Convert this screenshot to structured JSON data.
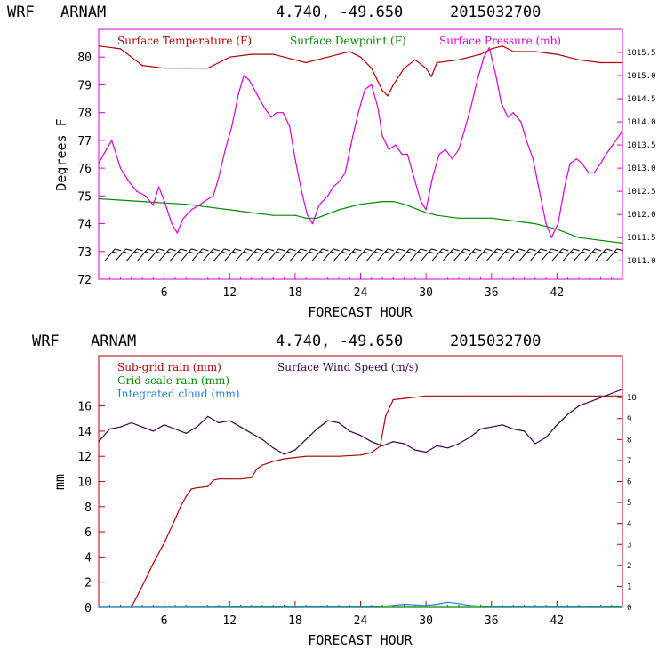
{
  "chart_data": [
    {
      "type": "line",
      "header": {
        "model": "WRF",
        "station": "ARNAM",
        "coords": "4.740, -49.650",
        "date": "2015032700"
      },
      "xlabel": "FORECAST HOUR",
      "ylabel": "Degrees F",
      "xlim": [
        0,
        48
      ],
      "ylim": [
        72,
        81
      ],
      "xticks": [
        6,
        12,
        18,
        24,
        30,
        36,
        42
      ],
      "yticks": [
        72,
        73,
        74,
        75,
        76,
        77,
        78,
        79,
        80
      ],
      "y2label": "Surface Pressure (mb)",
      "y2lim": [
        1010.6,
        1016.0
      ],
      "y2ticks": [
        "1011.0",
        "1011.5",
        "1012.0",
        "1012.5",
        "1013.0",
        "1013.5",
        "1014.0",
        "1014.5",
        "1015.0",
        "1015.5"
      ],
      "series": [
        {
          "name": "Surface Temperature (F)",
          "color": "#b00000",
          "axis": "left",
          "x": [
            0,
            2,
            3,
            4,
            6,
            8,
            10,
            11,
            12,
            14,
            16,
            18,
            19,
            20,
            22,
            23,
            24,
            25,
            26,
            26.5,
            27,
            28,
            29,
            30,
            30.5,
            31,
            33,
            35,
            36,
            37,
            38,
            40,
            42,
            44,
            46,
            48
          ],
          "values": [
            80.4,
            80.3,
            80.0,
            79.7,
            79.6,
            79.6,
            79.6,
            79.8,
            80.0,
            80.1,
            80.1,
            79.9,
            79.8,
            79.9,
            80.1,
            80.2,
            80.0,
            79.6,
            78.8,
            78.6,
            79.0,
            79.6,
            79.9,
            79.6,
            79.3,
            79.8,
            79.9,
            80.1,
            80.3,
            80.4,
            80.2,
            80.2,
            80.1,
            79.9,
            79.8,
            79.8
          ]
        },
        {
          "name": "Surface Dewpoint (F)",
          "color": "#008800",
          "axis": "left",
          "x": [
            0,
            4,
            8,
            10,
            12,
            14,
            16,
            18,
            19,
            20,
            22,
            24,
            26,
            27,
            28,
            30,
            31,
            33,
            36,
            38,
            40,
            42,
            44,
            46,
            48
          ],
          "values": [
            74.9,
            74.8,
            74.7,
            74.6,
            74.5,
            74.4,
            74.3,
            74.3,
            74.2,
            74.2,
            74.5,
            74.7,
            74.8,
            74.8,
            74.7,
            74.4,
            74.3,
            74.2,
            74.2,
            74.1,
            74.0,
            73.8,
            73.5,
            73.4,
            73.3
          ]
        },
        {
          "name": "Surface Pressure (mb)",
          "color": "#d400d4",
          "axis": "right",
          "x": [
            0,
            0.7,
            1.2,
            2,
            2.8,
            3.5,
            4.3,
            5,
            5.5,
            6,
            6.7,
            7.2,
            7.7,
            8.5,
            9.2,
            9.8,
            10.5,
            11,
            11.6,
            12.2,
            12.8,
            13.3,
            13.8,
            14.5,
            15.2,
            15.8,
            16.3,
            16.9,
            17.5,
            18,
            18.6,
            19.1,
            19.6,
            20.2,
            21,
            21.5,
            22,
            22.6,
            23.2,
            23.8,
            24.4,
            25,
            25.6,
            26,
            26.6,
            27.2,
            27.8,
            28.3,
            28.9,
            29.5,
            30,
            30.6,
            31.2,
            31.8,
            32.4,
            33,
            33.5,
            34.1,
            34.7,
            35.3,
            35.8,
            36.4,
            36.9,
            37.5,
            38,
            38.7,
            39.2,
            39.8,
            40.4,
            41,
            41.5,
            42.1,
            42.7,
            43.2,
            43.8,
            44.3,
            44.9,
            45.4,
            46,
            46.5,
            47.1,
            47.7,
            48
          ],
          "values": [
            1013.1,
            1013.4,
            1013.6,
            1013.0,
            1012.7,
            1012.5,
            1012.4,
            1012.2,
            1012.6,
            1012.3,
            1011.8,
            1011.6,
            1011.9,
            1012.1,
            1012.2,
            1012.3,
            1012.4,
            1012.8,
            1013.4,
            1013.9,
            1014.6,
            1015.0,
            1014.9,
            1014.6,
            1014.3,
            1014.1,
            1014.2,
            1014.2,
            1013.9,
            1013.2,
            1012.5,
            1012.0,
            1011.8,
            1012.2,
            1012.4,
            1012.6,
            1012.7,
            1012.9,
            1013.6,
            1014.2,
            1014.7,
            1014.8,
            1014.3,
            1013.7,
            1013.4,
            1013.5,
            1013.3,
            1013.3,
            1012.8,
            1012.3,
            1012.1,
            1012.8,
            1013.3,
            1013.4,
            1013.2,
            1013.4,
            1013.8,
            1014.3,
            1014.9,
            1015.4,
            1015.6,
            1015.0,
            1014.4,
            1014.1,
            1014.2,
            1014.0,
            1013.6,
            1013.2,
            1012.5,
            1011.8,
            1011.5,
            1011.8,
            1012.6,
            1013.1,
            1013.2,
            1013.1,
            1012.9,
            1012.9,
            1013.1,
            1013.3,
            1013.5,
            1013.7,
            1013.8
          ]
        },
        {
          "name": "Wind barbs",
          "color": "#000000",
          "axis": "left",
          "x": [
            1,
            2,
            3,
            4,
            5,
            6,
            7,
            8,
            9,
            10,
            11,
            12,
            13,
            14,
            15,
            16,
            17,
            18,
            19,
            20,
            21,
            22,
            23,
            24,
            25,
            26,
            27,
            28,
            29,
            30,
            31,
            32,
            33,
            34,
            35,
            36,
            37,
            38,
            39,
            40,
            41,
            42,
            43,
            44,
            45,
            46,
            47
          ],
          "values": [
            72.9,
            72.9,
            72.9,
            72.9,
            72.9,
            72.9,
            72.9,
            72.9,
            72.9,
            72.9,
            72.9,
            72.9,
            72.9,
            72.9,
            72.9,
            72.9,
            72.9,
            72.9,
            72.9,
            72.9,
            72.9,
            72.9,
            72.9,
            72.9,
            72.9,
            72.9,
            72.9,
            72.9,
            72.9,
            72.9,
            72.9,
            72.9,
            72.9,
            72.9,
            72.9,
            72.9,
            72.9,
            72.9,
            72.9,
            72.9,
            72.9,
            72.9,
            72.9,
            72.9,
            72.9,
            72.9,
            72.9
          ]
        }
      ]
    },
    {
      "type": "line",
      "header": {
        "model": "WRF",
        "station": "ARNAM",
        "coords": "4.740, -49.650",
        "date": "2015032700"
      },
      "xlabel": "FORECAST HOUR",
      "ylabel": "mm",
      "xlim": [
        0,
        48
      ],
      "ylim": [
        0,
        20
      ],
      "xticks": [
        6,
        12,
        18,
        24,
        30,
        36,
        42
      ],
      "yticks": [
        0,
        2,
        4,
        6,
        8,
        10,
        12,
        14,
        16
      ],
      "y2label": "Surface Wind Speed (m/s)",
      "y2lim": [
        0,
        12
      ],
      "y2ticks": [
        "0",
        "1",
        "2",
        "3",
        "4",
        "5",
        "6",
        "7",
        "8",
        "9",
        "10"
      ],
      "series": [
        {
          "name": "Sub-grid rain (mm)",
          "color": "#b00000",
          "axis": "left",
          "x": [
            3,
            4,
            5,
            6,
            7,
            7.5,
            8,
            8.5,
            9,
            10,
            10.5,
            11,
            12,
            13,
            14,
            14.5,
            15,
            16,
            17,
            18,
            19,
            20,
            22,
            24,
            25,
            25.8,
            26.3,
            27,
            28,
            30,
            34,
            38,
            42,
            46,
            48
          ],
          "values": [
            0,
            1.7,
            3.5,
            5.1,
            7.0,
            8.0,
            8.8,
            9.4,
            9.5,
            9.6,
            10.1,
            10.2,
            10.2,
            10.2,
            10.3,
            11.0,
            11.3,
            11.6,
            11.8,
            11.9,
            12.0,
            12.0,
            12.0,
            12.1,
            12.3,
            12.8,
            15.2,
            16.5,
            16.6,
            16.8,
            16.8,
            16.8,
            16.8,
            16.8,
            16.8
          ]
        },
        {
          "name": "Grid-scale rain (mm)",
          "color": "#008800",
          "axis": "left",
          "x": [
            0,
            48
          ],
          "values": [
            0,
            0
          ]
        },
        {
          "name": "Integrated cloud (mm)",
          "color": "#1f7fd6",
          "axis": "left",
          "x": [
            0,
            10,
            15,
            20,
            25,
            27,
            28,
            29,
            30,
            31,
            32,
            33,
            34,
            36,
            40,
            48
          ],
          "values": [
            0,
            0.02,
            0.05,
            0.03,
            0.05,
            0.15,
            0.25,
            0.2,
            0.15,
            0.25,
            0.4,
            0.3,
            0.15,
            0.05,
            0.02,
            0.05
          ]
        },
        {
          "name": "Surface Wind Speed (m/s)",
          "color": "#3a0050",
          "axis": "right",
          "x": [
            0,
            1,
            2,
            3,
            4,
            5,
            6,
            7,
            8,
            9,
            10,
            11,
            12,
            13,
            14,
            15,
            16,
            17,
            18,
            19,
            20,
            21,
            22,
            23,
            24,
            25,
            26,
            27,
            28,
            29,
            30,
            31,
            32,
            33,
            34,
            35,
            36,
            37,
            38,
            39,
            40,
            41,
            42,
            43,
            44,
            45,
            46,
            47,
            48
          ],
          "values": [
            7.9,
            8.5,
            8.6,
            8.8,
            8.6,
            8.4,
            8.7,
            8.5,
            8.3,
            8.6,
            9.1,
            8.8,
            8.9,
            8.6,
            8.3,
            8.0,
            7.6,
            7.3,
            7.5,
            8.0,
            8.5,
            8.9,
            8.8,
            8.4,
            8.2,
            7.9,
            7.7,
            7.9,
            7.8,
            7.5,
            7.4,
            7.7,
            7.6,
            7.8,
            8.1,
            8.5,
            8.6,
            8.7,
            8.5,
            8.4,
            7.8,
            8.1,
            8.7,
            9.2,
            9.6,
            9.8,
            10.0,
            10.2,
            10.4
          ]
        }
      ]
    }
  ]
}
